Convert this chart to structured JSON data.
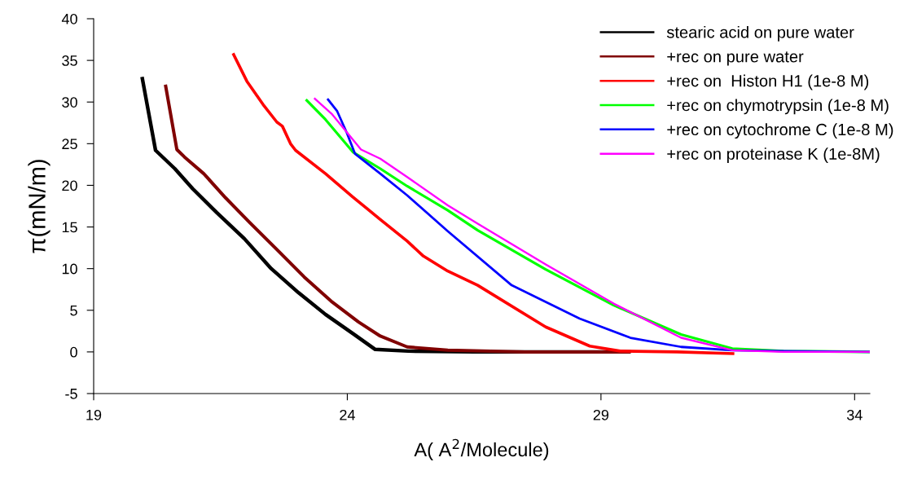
{
  "chart_data": {
    "type": "line",
    "xlabel": "A( A$^{2}$/Molecule)",
    "ylabel": "π(mN/m)",
    "xlim": [
      19,
      34.3
    ],
    "xticks": [
      19,
      24,
      29,
      34
    ],
    "ylim": [
      -5,
      40
    ],
    "yticks": [
      -5,
      0,
      5,
      10,
      15,
      20,
      25,
      30,
      35,
      40
    ],
    "grid": false,
    "legend": "top right",
    "marker": "none",
    "line_style": "solid",
    "series": [
      {
        "name": "stearic acid on pure water",
        "color": "#000000",
        "x": [
          19.96,
          20.22,
          20.6,
          20.95,
          21.43,
          21.97,
          22.5,
          23.04,
          23.57,
          24.11,
          24.55,
          25.2,
          26.5,
          28.0,
          29.55
        ],
        "values": [
          32.8,
          24.2,
          22.0,
          19.6,
          16.7,
          13.6,
          10.0,
          7.1,
          4.5,
          2.2,
          0.3,
          0.1,
          0.0,
          0.0,
          0.0
        ]
      },
      {
        "name": "+rec on pure water",
        "color": "#800000",
        "x": [
          20.42,
          20.64,
          20.79,
          21.17,
          21.6,
          22.08,
          22.61,
          23.15,
          23.68,
          24.22,
          24.65,
          25.18,
          25.98,
          27.5,
          29.55
        ],
        "values": [
          31.9,
          24.3,
          23.4,
          21.4,
          18.5,
          15.5,
          12.3,
          9.0,
          6.1,
          3.6,
          1.9,
          0.6,
          0.2,
          0.0,
          0.0
        ]
      },
      {
        "name": "+rec on  Histon H1 (1e-8 M)",
        "color": "#ff0000",
        "x": [
          21.76,
          22.02,
          22.34,
          22.61,
          22.72,
          22.88,
          22.98,
          23.57,
          24.11,
          24.65,
          25.18,
          25.5,
          25.98,
          26.57,
          27.91,
          28.78,
          29.38,
          30.5,
          31.6
        ],
        "values": [
          35.7,
          32.5,
          29.7,
          27.6,
          27.1,
          25.0,
          24.2,
          21.4,
          18.6,
          15.9,
          13.3,
          11.5,
          9.7,
          8.0,
          3.0,
          0.7,
          0.1,
          0.0,
          -0.2
        ]
      },
      {
        "name": "+rec on chymotrypsin (1e-8 M)",
        "color": "#00ff00",
        "x": [
          23.2,
          23.57,
          24.11,
          24.65,
          25.18,
          25.98,
          26.57,
          27.91,
          29.25,
          30.58,
          31.59,
          32.6,
          34.3
        ],
        "values": [
          30.2,
          27.9,
          24.0,
          22.0,
          19.9,
          17.0,
          14.6,
          9.9,
          5.6,
          2.1,
          0.4,
          0.1,
          0.0
        ]
      },
      {
        "name": "+rec on cytochrome C (1e-8 M)",
        "color": "#0000ff",
        "x": [
          23.62,
          23.8,
          23.99,
          24.15,
          24.65,
          25.18,
          25.98,
          27.24,
          28.58,
          29.58,
          30.58,
          31.59,
          32.6,
          34.3
        ],
        "values": [
          30.3,
          28.9,
          26.3,
          23.8,
          21.4,
          18.8,
          14.5,
          8.0,
          4.0,
          1.7,
          0.6,
          0.2,
          0.1,
          0.0
        ]
      },
      {
        "name": "+rec on proteinase K (1e-8M)",
        "color": "#ff00ff",
        "x": [
          23.36,
          23.69,
          24.27,
          24.65,
          25.18,
          25.98,
          26.57,
          27.91,
          29.25,
          30.58,
          31.59,
          32.6,
          34.3
        ],
        "values": [
          30.4,
          28.6,
          24.3,
          23.2,
          21.0,
          17.6,
          15.4,
          10.5,
          5.8,
          1.7,
          0.2,
          0.0,
          0.0
        ]
      }
    ]
  }
}
